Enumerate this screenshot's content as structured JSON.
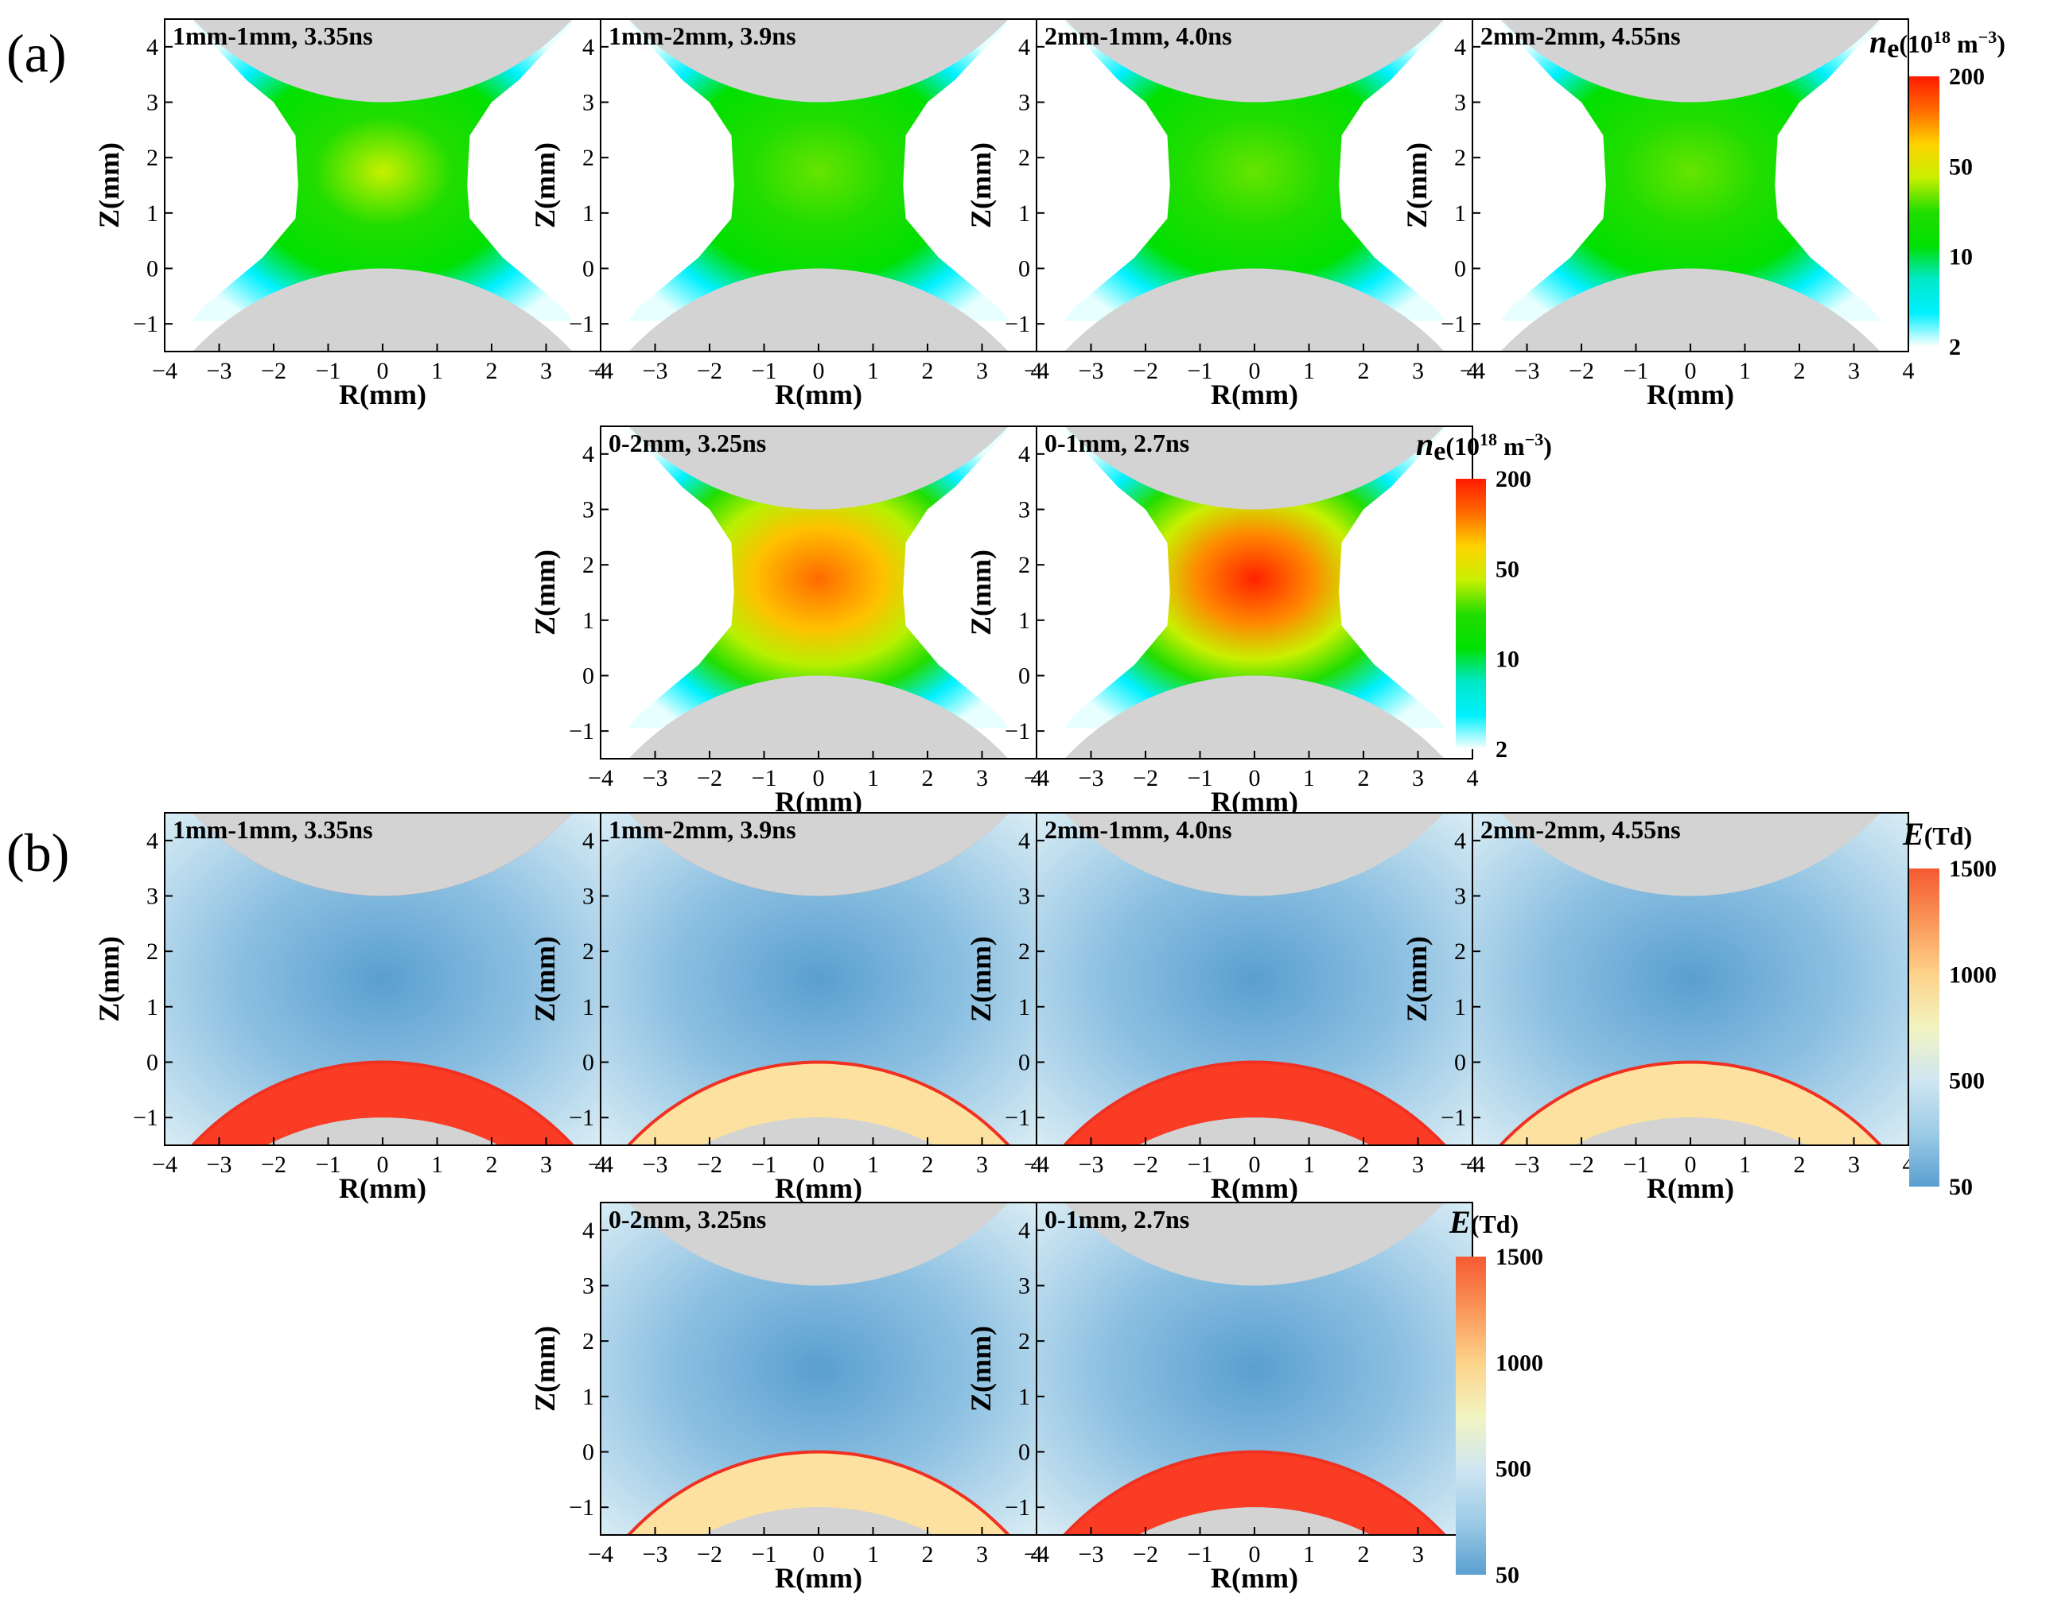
{
  "panel_labels": {
    "a": "(a)",
    "b": "(b)"
  },
  "chart_data": {
    "type": "heatmap",
    "axes": {
      "xlabel": "R(mm)",
      "ylabel": "Z(mm)",
      "xlim": [
        -4,
        4
      ],
      "ylim": [
        -1.5,
        4.5
      ],
      "xticks": [
        -4,
        -3,
        -2,
        -1,
        0,
        1,
        2,
        3,
        4
      ],
      "yticks": [
        -1,
        0,
        1,
        2,
        3,
        4
      ]
    },
    "colorbars": {
      "ne": {
        "title_symbol": "n",
        "title_sub": "e",
        "title_unit": "(10",
        "title_exp": "18",
        "title_unit2": " m",
        "title_exp2": "−3",
        "title_close": ")",
        "ticks": [
          "200",
          "50",
          "10",
          "2"
        ],
        "tick_values": [
          200,
          50,
          10,
          2
        ],
        "colors": [
          "#ff1a00",
          "#ff6a00",
          "#ffd200",
          "#c8f000",
          "#22dd00",
          "#00e000",
          "#00e8c8",
          "#00f0ff",
          "#ffffff"
        ]
      },
      "E": {
        "title_symbol": "E",
        "title_unit": "(Td)",
        "ticks": [
          "1500",
          "1000",
          "500",
          "50"
        ],
        "tick_values": [
          1500,
          1000,
          500,
          50
        ],
        "colors": [
          "#f55a32",
          "#fa9658",
          "#fdd38a",
          "#f2f4c0",
          "#cfe6f2",
          "#9ccbe6",
          "#5a9fd0"
        ]
      }
    },
    "panels": [
      {
        "group": "a",
        "field": "ne",
        "case": "1mm-1mm",
        "title": "1mm-1mm, 3.35ns",
        "top_gap_mm": 1,
        "bottom_gap_mm": 1,
        "time_ns": 3.35
      },
      {
        "group": "a",
        "field": "ne",
        "case": "1mm-2mm",
        "title": "1mm-2mm, 3.9ns",
        "top_gap_mm": 1,
        "bottom_gap_mm": 2,
        "time_ns": 3.9
      },
      {
        "group": "a",
        "field": "ne",
        "case": "2mm-1mm",
        "title": "2mm-1mm, 4.0ns",
        "top_gap_mm": 2,
        "bottom_gap_mm": 1,
        "time_ns": 4.0
      },
      {
        "group": "a",
        "field": "ne",
        "case": "2mm-2mm",
        "title": "2mm-2mm, 4.55ns",
        "top_gap_mm": 2,
        "bottom_gap_mm": 2,
        "time_ns": 4.55
      },
      {
        "group": "a",
        "field": "ne",
        "case": "0-2mm",
        "title": "0-2mm, 3.25ns",
        "top_gap_mm": 0,
        "bottom_gap_mm": 2,
        "time_ns": 3.25
      },
      {
        "group": "a",
        "field": "ne",
        "case": "0-1mm",
        "title": "0-1mm, 2.7ns",
        "top_gap_mm": 0,
        "bottom_gap_mm": 1,
        "time_ns": 2.7
      },
      {
        "group": "b",
        "field": "E",
        "case": "1mm-1mm",
        "title": "1mm-1mm, 3.35ns",
        "top_gap_mm": 1,
        "bottom_gap_mm": 1,
        "time_ns": 3.35
      },
      {
        "group": "b",
        "field": "E",
        "case": "1mm-2mm",
        "title": "1mm-2mm, 3.9ns",
        "top_gap_mm": 1,
        "bottom_gap_mm": 2,
        "time_ns": 3.9
      },
      {
        "group": "b",
        "field": "E",
        "case": "2mm-1mm",
        "title": "2mm-1mm, 4.0ns",
        "top_gap_mm": 2,
        "bottom_gap_mm": 1,
        "time_ns": 4.0
      },
      {
        "group": "b",
        "field": "E",
        "case": "2mm-2mm",
        "title": "2mm-2mm, 4.55ns",
        "top_gap_mm": 2,
        "bottom_gap_mm": 2,
        "time_ns": 4.55
      },
      {
        "group": "b",
        "field": "E",
        "case": "0-2mm",
        "title": "0-2mm, 3.25ns",
        "top_gap_mm": 0,
        "bottom_gap_mm": 2,
        "time_ns": 3.25
      },
      {
        "group": "b",
        "field": "E",
        "case": "0-1mm",
        "title": "0-1mm, 2.7ns",
        "top_gap_mm": 0,
        "bottom_gap_mm": 1,
        "time_ns": 2.7
      }
    ]
  }
}
